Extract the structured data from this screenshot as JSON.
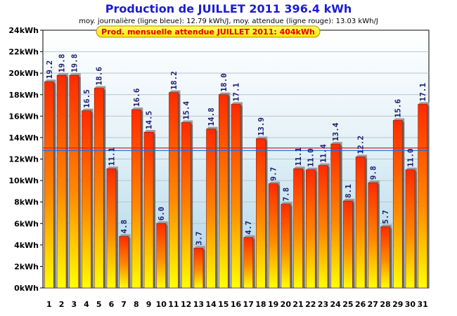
{
  "chart_data": {
    "type": "bar",
    "title": "Production de JUILLET 2011  396.4 kWh",
    "subtitle": "moy. journalière (ligne bleue): 12.79 kWh/J,   moy. attendue (ligne rouge): 13.03 kWh/J",
    "banner": "Prod. mensuelle attendue JUILLET 2011: 404kWh",
    "categories": [
      "1",
      "2",
      "3",
      "4",
      "5",
      "6",
      "7",
      "8",
      "9",
      "10",
      "11",
      "12",
      "13",
      "14",
      "15",
      "16",
      "17",
      "18",
      "19",
      "20",
      "21",
      "22",
      "23",
      "24",
      "25",
      "26",
      "27",
      "28",
      "29",
      "30",
      "31"
    ],
    "values": [
      19.2,
      19.8,
      19.8,
      16.5,
      18.6,
      11.1,
      4.8,
      16.6,
      14.5,
      6.0,
      18.2,
      15.4,
      3.7,
      14.8,
      18.0,
      17.1,
      4.7,
      13.9,
      9.7,
      7.8,
      11.1,
      11.0,
      11.4,
      13.4,
      8.1,
      12.2,
      9.8,
      5.7,
      15.6,
      11.0,
      17.1
    ],
    "value_labels": [
      "19.2",
      "19.8",
      "19.8",
      "16.5",
      "18.6",
      "11.1",
      "4.8",
      "16.6",
      "14.5",
      "6.0",
      "18.2",
      "15.4",
      "3.7",
      "14.8",
      "18.0",
      "17.1",
      "4.7",
      "13.9",
      "9.7",
      "7.8",
      "11.1",
      "11.0",
      "11.4",
      "13.4",
      "8.1",
      "12.2",
      "9.8",
      "5.7",
      "15.6",
      "11.0",
      "17.1"
    ],
    "yticks": [
      "0kWh",
      "2kWh",
      "4kWh",
      "6kWh",
      "8kWh",
      "10kWh",
      "12kWh",
      "14kWh",
      "16kWh",
      "18kWh",
      "20kWh",
      "22kWh",
      "24kWh"
    ],
    "ylim": [
      0,
      24
    ],
    "ystep": 2,
    "daily_average": 12.79,
    "expected_average": 13.03,
    "xlabel": "",
    "ylabel": ""
  },
  "colors": {
    "title": "#1b1bd6",
    "bar_top": "#ff2a00",
    "bar_bottom": "#ffff00",
    "avg_line": "#1e6fd9",
    "expected_line": "#e02020",
    "banner_fill": "#ffff00",
    "banner_text": "#e00000",
    "plot_bg_top": "#ffffff",
    "plot_bg_bottom": "#a9d3e6"
  }
}
